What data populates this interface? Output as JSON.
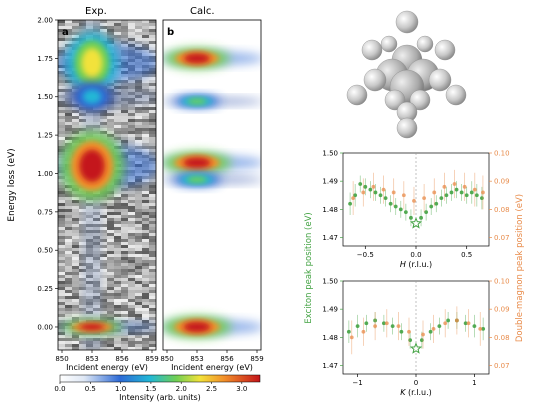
{
  "chart_data": [
    {
      "type": "heatmap",
      "panel_label": "a",
      "title": "Exp.",
      "xlabel": "Incident energy (eV)",
      "ylabel": "Energy loss (eV)",
      "xticks": [
        "850",
        "853",
        "856",
        "859"
      ],
      "xlim": [
        850,
        859
      ],
      "yticks": [
        "0.00",
        "0.25",
        "0.50",
        "0.75",
        "1.00",
        "1.25",
        "1.50",
        "1.75",
        "2.00"
      ],
      "ylim": [
        -0.15,
        2.0
      ],
      "features": [
        {
          "x": 853,
          "y": 0.0,
          "intensity": 3.2
        },
        {
          "x": 853,
          "y": 1.05,
          "intensity": 3.3
        },
        {
          "x": 853,
          "y": 1.72,
          "intensity": 1.8
        },
        {
          "x": 853,
          "y": 1.5,
          "intensity": 0.9
        }
      ]
    },
    {
      "type": "heatmap",
      "panel_label": "b",
      "title": "Calc.",
      "xlabel": "Incident energy (eV)",
      "xticks": [
        "850",
        "853",
        "856",
        "859"
      ],
      "xlim": [
        850,
        859
      ],
      "ylim": [
        -0.15,
        2.0
      ],
      "features": [
        {
          "x": 853,
          "y": 0.0,
          "intensity": 3.3
        },
        {
          "x": 853,
          "y": 1.07,
          "intensity": 3.3
        },
        {
          "x": 853,
          "y": 0.96,
          "intensity": 1.2
        },
        {
          "x": 853,
          "y": 1.75,
          "intensity": 3.0
        },
        {
          "x": 853,
          "y": 1.47,
          "intensity": 1.0
        }
      ]
    },
    {
      "type": "colorbar",
      "label": "Intensity (arb. units)",
      "ticks": [
        "0.0",
        "0.5",
        "1.0",
        "1.5",
        "2.0",
        "2.5",
        "3.0"
      ],
      "range": [
        0,
        3.3
      ]
    },
    {
      "type": "scatter",
      "xlabel_var": "H",
      "xlabel_unit": " (r.l.u.)",
      "xticks": [
        "−0.5",
        "0.0",
        "0.5"
      ],
      "xtick_values": [
        -0.5,
        0,
        0.5
      ],
      "xlim": [
        -0.72,
        0.72
      ],
      "yticks_left": [
        "1.47",
        "1.48",
        "1.49",
        "1.50"
      ],
      "ylim_left": [
        1.467,
        1.5
      ],
      "yticks_right": [
        "0.07",
        "0.08",
        "0.09",
        "0.10"
      ],
      "ylim_right": [
        0.067,
        0.1
      ],
      "series": [
        {
          "axis": "left",
          "color": "#44a344",
          "points": [
            {
              "x": -0.65,
              "y": 1.482,
              "e": 0.004
            },
            {
              "x": -0.6,
              "y": 1.485,
              "e": 0.004
            },
            {
              "x": -0.55,
              "y": 1.489,
              "e": 0.003
            },
            {
              "x": -0.5,
              "y": 1.488,
              "e": 0.003
            },
            {
              "x": -0.45,
              "y": 1.487,
              "e": 0.003
            },
            {
              "x": -0.4,
              "y": 1.486,
              "e": 0.003
            },
            {
              "x": -0.35,
              "y": 1.485,
              "e": 0.003
            },
            {
              "x": -0.3,
              "y": 1.484,
              "e": 0.003
            },
            {
              "x": -0.25,
              "y": 1.482,
              "e": 0.003
            },
            {
              "x": -0.2,
              "y": 1.481,
              "e": 0.003
            },
            {
              "x": -0.15,
              "y": 1.48,
              "e": 0.003
            },
            {
              "x": -0.1,
              "y": 1.479,
              "e": 0.003
            },
            {
              "x": -0.05,
              "y": 1.477,
              "e": 0.003
            },
            {
              "x": 0.05,
              "y": 1.477,
              "e": 0.003
            },
            {
              "x": 0.1,
              "y": 1.479,
              "e": 0.003
            },
            {
              "x": 0.15,
              "y": 1.481,
              "e": 0.003
            },
            {
              "x": 0.2,
              "y": 1.482,
              "e": 0.003
            },
            {
              "x": 0.25,
              "y": 1.484,
              "e": 0.003
            },
            {
              "x": 0.3,
              "y": 1.485,
              "e": 0.003
            },
            {
              "x": 0.35,
              "y": 1.486,
              "e": 0.003
            },
            {
              "x": 0.4,
              "y": 1.487,
              "e": 0.003
            },
            {
              "x": 0.45,
              "y": 1.486,
              "e": 0.003
            },
            {
              "x": 0.5,
              "y": 1.485,
              "e": 0.003
            },
            {
              "x": 0.55,
              "y": 1.486,
              "e": 0.004
            },
            {
              "x": 0.6,
              "y": 1.485,
              "e": 0.004
            },
            {
              "x": 0.65,
              "y": 1.484,
              "e": 0.004
            }
          ],
          "star": {
            "x": 0.0,
            "y": 1.475
          }
        },
        {
          "axis": "right",
          "color": "#e88b4a",
          "points": [
            {
              "x": -0.62,
              "y": 0.084,
              "e": 0.006
            },
            {
              "x": -0.52,
              "y": 0.086,
              "e": 0.005
            },
            {
              "x": -0.42,
              "y": 0.088,
              "e": 0.005
            },
            {
              "x": -0.32,
              "y": 0.087,
              "e": 0.005
            },
            {
              "x": -0.22,
              "y": 0.086,
              "e": 0.005
            },
            {
              "x": -0.12,
              "y": 0.085,
              "e": 0.005
            },
            {
              "x": -0.02,
              "y": 0.083,
              "e": 0.005
            },
            {
              "x": 0.08,
              "y": 0.084,
              "e": 0.005
            },
            {
              "x": 0.18,
              "y": 0.086,
              "e": 0.005
            },
            {
              "x": 0.28,
              "y": 0.088,
              "e": 0.005
            },
            {
              "x": 0.38,
              "y": 0.089,
              "e": 0.005
            },
            {
              "x": 0.48,
              "y": 0.088,
              "e": 0.005
            },
            {
              "x": 0.58,
              "y": 0.087,
              "e": 0.006
            },
            {
              "x": 0.66,
              "y": 0.086,
              "e": 0.006
            }
          ]
        }
      ]
    },
    {
      "type": "scatter",
      "xlabel_var": "K",
      "xlabel_unit": " (r.l.u.)",
      "xticks": [
        "−1",
        "0",
        "1"
      ],
      "xtick_values": [
        -1,
        0,
        1
      ],
      "xlim": [
        -1.25,
        1.25
      ],
      "yticks_left": [
        "1.47",
        "1.48",
        "1.49",
        "1.50"
      ],
      "ylim_left": [
        1.467,
        1.5
      ],
      "yticks_right": [
        "0.07",
        "0.08",
        "0.09",
        "0.10"
      ],
      "ylim_right": [
        0.067,
        0.1
      ],
      "series": [
        {
          "axis": "left",
          "color": "#44a344",
          "points": [
            {
              "x": -1.15,
              "y": 1.482,
              "e": 0.004
            },
            {
              "x": -1.0,
              "y": 1.484,
              "e": 0.004
            },
            {
              "x": -0.85,
              "y": 1.485,
              "e": 0.003
            },
            {
              "x": -0.7,
              "y": 1.486,
              "e": 0.003
            },
            {
              "x": -0.55,
              "y": 1.485,
              "e": 0.003
            },
            {
              "x": -0.4,
              "y": 1.484,
              "e": 0.003
            },
            {
              "x": -0.25,
              "y": 1.482,
              "e": 0.003
            },
            {
              "x": -0.1,
              "y": 1.479,
              "e": 0.003
            },
            {
              "x": 0.1,
              "y": 1.479,
              "e": 0.003
            },
            {
              "x": 0.25,
              "y": 1.482,
              "e": 0.003
            },
            {
              "x": 0.4,
              "y": 1.484,
              "e": 0.003
            },
            {
              "x": 0.55,
              "y": 1.486,
              "e": 0.003
            },
            {
              "x": 0.7,
              "y": 1.486,
              "e": 0.003
            },
            {
              "x": 0.85,
              "y": 1.485,
              "e": 0.003
            },
            {
              "x": 1.0,
              "y": 1.484,
              "e": 0.004
            },
            {
              "x": 1.15,
              "y": 1.483,
              "e": 0.004
            }
          ],
          "star": {
            "x": 0.0,
            "y": 1.476
          }
        },
        {
          "axis": "right",
          "color": "#e88b4a",
          "points": [
            {
              "x": -1.1,
              "y": 0.08,
              "e": 0.006
            },
            {
              "x": -0.9,
              "y": 0.082,
              "e": 0.005
            },
            {
              "x": -0.7,
              "y": 0.084,
              "e": 0.005
            },
            {
              "x": -0.5,
              "y": 0.085,
              "e": 0.005
            },
            {
              "x": -0.3,
              "y": 0.084,
              "e": 0.005
            },
            {
              "x": -0.12,
              "y": 0.082,
              "e": 0.005
            },
            {
              "x": 0.12,
              "y": 0.081,
              "e": 0.005
            },
            {
              "x": 0.3,
              "y": 0.083,
              "e": 0.005
            },
            {
              "x": 0.5,
              "y": 0.085,
              "e": 0.005
            },
            {
              "x": 0.7,
              "y": 0.086,
              "e": 0.005
            },
            {
              "x": 0.9,
              "y": 0.085,
              "e": 0.005
            },
            {
              "x": 1.1,
              "y": 0.083,
              "e": 0.006
            }
          ]
        }
      ]
    },
    {
      "type": "shared_axis_labels",
      "left": "Exciton peak position (eV)",
      "left_color": "#44a344",
      "right": "Double-magnon peak position (eV)",
      "right_color": "#e88b4a"
    }
  ]
}
